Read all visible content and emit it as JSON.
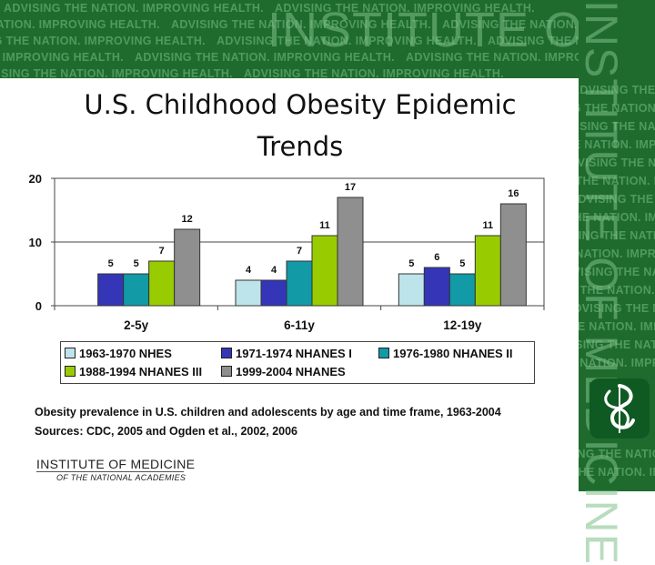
{
  "header": {
    "motto": "ADVISING THE NATION. IMPROVING HEALTH.",
    "org_title": "INSTITUTE OF MEDICINE"
  },
  "slide": {
    "title_line1": "U.S. Childhood Obesity Epidemic",
    "title_line2": "Trends"
  },
  "chart_data": {
    "type": "bar",
    "title": "",
    "xlabel": "",
    "ylabel": "",
    "ylim": [
      0,
      20
    ],
    "yticks": [
      0,
      10,
      20
    ],
    "categories": [
      "2-5y",
      "6-11y",
      "12-19y"
    ],
    "series": [
      {
        "name": "1963-1970 NHES",
        "color": "#bde4ea",
        "values": [
          null,
          4,
          5
        ]
      },
      {
        "name": "1971-1974 NHANES I",
        "color": "#3535b8",
        "values": [
          5,
          4,
          6
        ]
      },
      {
        "name": "1976-1980 NHANES II",
        "color": "#129aa6",
        "values": [
          5,
          7,
          5
        ]
      },
      {
        "name": "1988-1994 NHANES III",
        "color": "#99cc00",
        "values": [
          7,
          11,
          11
        ]
      },
      {
        "name": "1999-2004 NHANES",
        "color": "#8f8f8f",
        "values": [
          12,
          17,
          16
        ]
      }
    ],
    "grid": true,
    "legend_position": "bottom"
  },
  "caption": {
    "line1": "Obesity prevalence in U.S. children and adolescents by age and time frame, 1963-2004",
    "line2": "Sources: CDC, 2005 and Ogden et al., 2002, 2006"
  },
  "footer": {
    "org_name": "INSTITUTE OF MEDICINE",
    "org_sub": "OF THE NATIONAL ACADEMIES"
  }
}
